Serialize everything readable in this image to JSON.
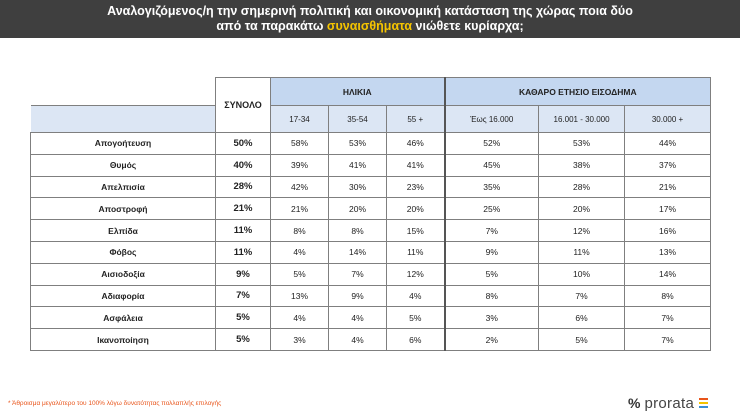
{
  "header": {
    "line1": "Αναλογιζόμενος/η την σημερινή πολιτική και οικονομική κατάσταση της χώρας ποια δύο",
    "line2_pre": "από τα παρακάτω ",
    "line2_highlight": "συναισθήματα",
    "line2_post": " νιώθετε κυρίαρχα;"
  },
  "table": {
    "total_header": "ΣΥΝΟΛΟ",
    "age_header": "ΗΛΙΚΙΑ",
    "income_header": "ΚΑΘΑΡΟ ΕΤΗΣΙΟ ΕΙΣΟΔΗΜΑ",
    "age_groups": [
      "17-34",
      "35-54",
      "55 +"
    ],
    "income_groups": [
      "Έως 16.000",
      "16.001 - 30.000",
      "30.000 +"
    ],
    "rows": [
      {
        "label": "Απογοήτευση",
        "total": "50%",
        "values": [
          "58%",
          "53%",
          "46%",
          "52%",
          "53%",
          "44%"
        ]
      },
      {
        "label": "Θυμός",
        "total": "40%",
        "values": [
          "39%",
          "41%",
          "41%",
          "45%",
          "38%",
          "37%"
        ]
      },
      {
        "label": "Απελπισία",
        "total": "28%",
        "values": [
          "42%",
          "30%",
          "23%",
          "35%",
          "28%",
          "21%"
        ]
      },
      {
        "label": "Αποστροφή",
        "total": "21%",
        "values": [
          "21%",
          "20%",
          "20%",
          "25%",
          "20%",
          "17%"
        ]
      },
      {
        "label": "Ελπίδα",
        "total": "11%",
        "values": [
          "8%",
          "8%",
          "15%",
          "7%",
          "12%",
          "16%"
        ]
      },
      {
        "label": "Φόβος",
        "total": "11%",
        "values": [
          "4%",
          "14%",
          "11%",
          "9%",
          "11%",
          "13%"
        ]
      },
      {
        "label": "Αισιοδοξία",
        "total": "9%",
        "values": [
          "5%",
          "7%",
          "12%",
          "5%",
          "10%",
          "14%"
        ]
      },
      {
        "label": "Αδιαφορία",
        "total": "7%",
        "values": [
          "13%",
          "9%",
          "4%",
          "8%",
          "7%",
          "8%"
        ]
      },
      {
        "label": "Ασφάλεια",
        "total": "5%",
        "values": [
          "4%",
          "4%",
          "5%",
          "3%",
          "6%",
          "7%"
        ]
      },
      {
        "label": "Ικανοποίηση",
        "total": "5%",
        "values": [
          "3%",
          "4%",
          "6%",
          "2%",
          "5%",
          "7%"
        ]
      }
    ]
  },
  "footnote": "* Άθροισμα μεγαλύτερο του 100% λόγω δυνατότητας πολλαπλής επιλογής",
  "logo": {
    "symbol": "%",
    "brand": "prorata",
    "bar_colors": [
      "#e8541a",
      "#f5c400",
      "#3a8fd6"
    ]
  },
  "colors": {
    "header_bg": "#3f3f3f",
    "highlight": "#f5c400",
    "group_bg": "#c4d7f0",
    "sub_bg": "#dce6f4",
    "footnote": "#e8541a"
  }
}
